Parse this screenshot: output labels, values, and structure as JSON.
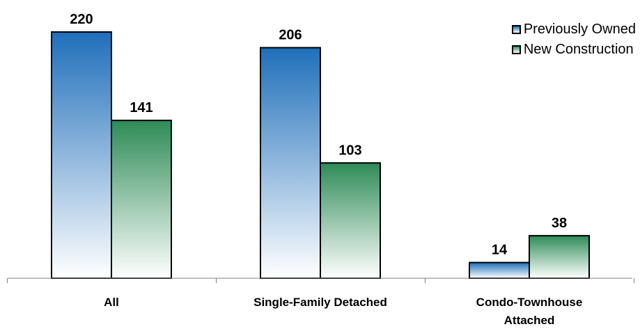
{
  "chart_data": {
    "type": "bar",
    "categories": [
      "All",
      "Single-Family Detached",
      "Condo-Townhouse Attached"
    ],
    "category_lines": [
      [
        "All"
      ],
      [
        "Single-Family Detached"
      ],
      [
        "Condo-Townhouse",
        "Attached"
      ]
    ],
    "series": [
      {
        "name": "Previously Owned",
        "values": [
          220,
          206,
          14
        ],
        "color": "#1f6fba"
      },
      {
        "name": "New Construction",
        "values": [
          141,
          103,
          38
        ],
        "color": "#2e8b57"
      }
    ],
    "title": "",
    "xlabel": "",
    "ylabel": "",
    "ylim": [
      0,
      250
    ],
    "grid": false,
    "data_labels": true,
    "legend_position": "top-right"
  }
}
